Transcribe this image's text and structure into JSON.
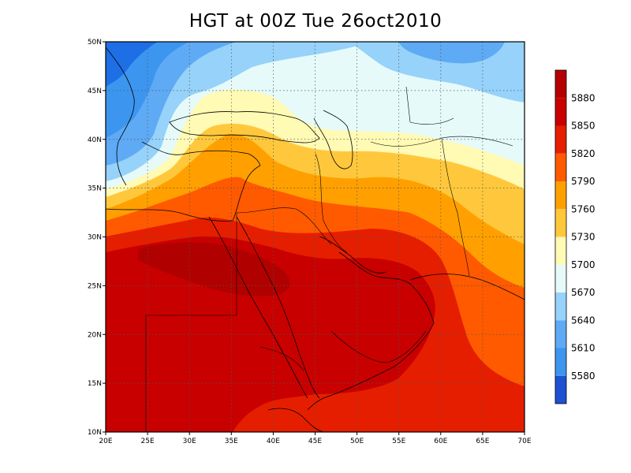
{
  "title": "HGT at 00Z Tue 26oct2010",
  "map": {
    "lon_range": [
      20,
      70
    ],
    "lat_range": [
      10,
      50
    ],
    "grid": "dotted",
    "lon_ticks": [
      "20E",
      "25E",
      "30E",
      "35E",
      "40E",
      "45E",
      "50E",
      "55E",
      "60E",
      "65E",
      "70E"
    ],
    "lat_ticks": [
      "10N",
      "15N",
      "20N",
      "25N",
      "30N",
      "35N",
      "40N",
      "45N",
      "50N"
    ]
  },
  "legend": {
    "position": "right",
    "labels": [
      "5580",
      "5610",
      "5640",
      "5670",
      "5700",
      "5730",
      "5760",
      "5790",
      "5820",
      "5850",
      "5880"
    ],
    "colors": [
      "#1e6ee6",
      "#3c96f0",
      "#5faaf5",
      "#96d2fa",
      "#e6fafa",
      "#fffab4",
      "#ffc83c",
      "#ffa000",
      "#ff5a00",
      "#e61e00",
      "#c80000"
    ]
  }
}
